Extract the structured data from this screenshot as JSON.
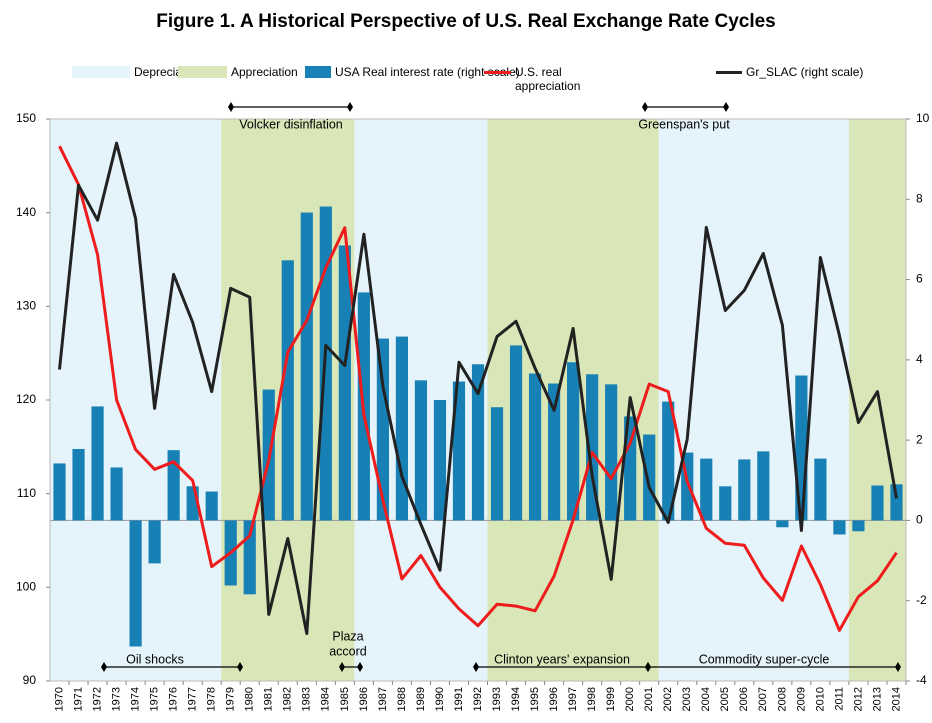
{
  "chart_data": {
    "type": "bar",
    "title": "Figure 1. A Historical Perspective of U.S. Real Exchange Rate Cycles",
    "categories": [
      "1970",
      "1971",
      "1972",
      "1973",
      "1974",
      "1975",
      "1976",
      "1977",
      "1978",
      "1979",
      "1980",
      "1981",
      "1982",
      "1983",
      "1984",
      "1985",
      "1986",
      "1987",
      "1988",
      "1989",
      "1990",
      "1991",
      "1992",
      "1993",
      "1994",
      "1995",
      "1996",
      "1997",
      "1998",
      "1999",
      "2000",
      "2001",
      "2002",
      "2003",
      "2004",
      "2005",
      "2006",
      "2007",
      "2008",
      "2009",
      "2010",
      "2011",
      "2012",
      "2013",
      "2014"
    ],
    "shading": [
      {
        "name": "Depreciation",
        "color": "#e5f3fb",
        "ranges": [
          [
            "1970",
            "1978"
          ],
          [
            "1986",
            "1992"
          ],
          [
            "2002",
            "2011"
          ]
        ]
      },
      {
        "name": "Appreciation",
        "color": "#d8e6b8",
        "ranges": [
          [
            "1979",
            "1985"
          ],
          [
            "1993",
            "2001"
          ],
          [
            "2012",
            "2014"
          ]
        ]
      }
    ],
    "series": [
      {
        "name": "USA Real interest rate (right scale)",
        "type": "bar",
        "axis": "y2",
        "color": "#1780b4",
        "values": [
          1.42,
          1.78,
          2.84,
          1.32,
          -3.14,
          -1.07,
          1.75,
          0.85,
          0.72,
          -1.62,
          -1.84,
          3.26,
          6.48,
          7.67,
          7.82,
          6.85,
          5.68,
          4.53,
          4.58,
          3.49,
          3.0,
          3.46,
          3.89,
          2.82,
          4.36,
          3.66,
          3.41,
          3.94,
          3.64,
          3.39,
          2.59,
          2.14,
          2.96,
          1.69,
          1.54,
          0.85,
          1.52,
          1.72,
          -0.17,
          3.61,
          1.54,
          -0.35,
          -0.27,
          0.87,
          0.9
        ]
      },
      {
        "name": "U.S. real appreciation",
        "type": "line",
        "axis": "y",
        "color": "#ee1c1c",
        "values": [
          147.1,
          143,
          135.5,
          120,
          114.7,
          112.6,
          113.4,
          111.4,
          102.2,
          103.7,
          105.5,
          113.6,
          125.1,
          128.5,
          134.1,
          138.4,
          118.4,
          109.3,
          100.9,
          103.4,
          100,
          97.7,
          95.9,
          98.2,
          98,
          97.5,
          101.2,
          107.2,
          114.4,
          111.6,
          115.4,
          121.7,
          120.9,
          111.3,
          106.3,
          104.7,
          104.5,
          101,
          98.6,
          104.4,
          100.3,
          95.4,
          99,
          100.7,
          103.7
        ]
      },
      {
        "name": "Gr_SLAC (right scale)",
        "type": "line",
        "axis": "y2",
        "color": "#222222",
        "values": [
          3.76,
          8.35,
          7.48,
          9.4,
          7.52,
          2.79,
          6.13,
          4.93,
          3.21,
          5.78,
          5.56,
          -2.34,
          -0.45,
          -2.82,
          4.36,
          3.86,
          7.13,
          3.34,
          1.1,
          -0.1,
          -1.24,
          3.94,
          3.16,
          4.58,
          4.96,
          3.79,
          2.74,
          4.78,
          1.12,
          -1.47,
          3.06,
          0.82,
          -0.05,
          2.02,
          7.3,
          5.23,
          5.73,
          6.65,
          4.86,
          -0.25,
          6.55,
          4.61,
          2.44,
          3.21,
          0.55
        ]
      }
    ],
    "ylim": [
      90,
      150
    ],
    "yticks": [
      90,
      100,
      110,
      120,
      130,
      140,
      150
    ],
    "y2lim": [
      -4,
      10
    ],
    "y2ticks": [
      -4,
      -2,
      0,
      2,
      4,
      6,
      8,
      10
    ],
    "annotations": [
      {
        "lines": [
          "Volcker disinflation"
        ]
      },
      {
        "lines": [
          "Greenspan's put"
        ]
      },
      {
        "lines": [
          "Oil shocks"
        ]
      },
      {
        "lines": [
          "Plaza",
          "accord"
        ]
      },
      {
        "lines": [
          "Clinton years' expansion"
        ]
      },
      {
        "lines": [
          "Commodity super-cycle"
        ]
      }
    ]
  }
}
